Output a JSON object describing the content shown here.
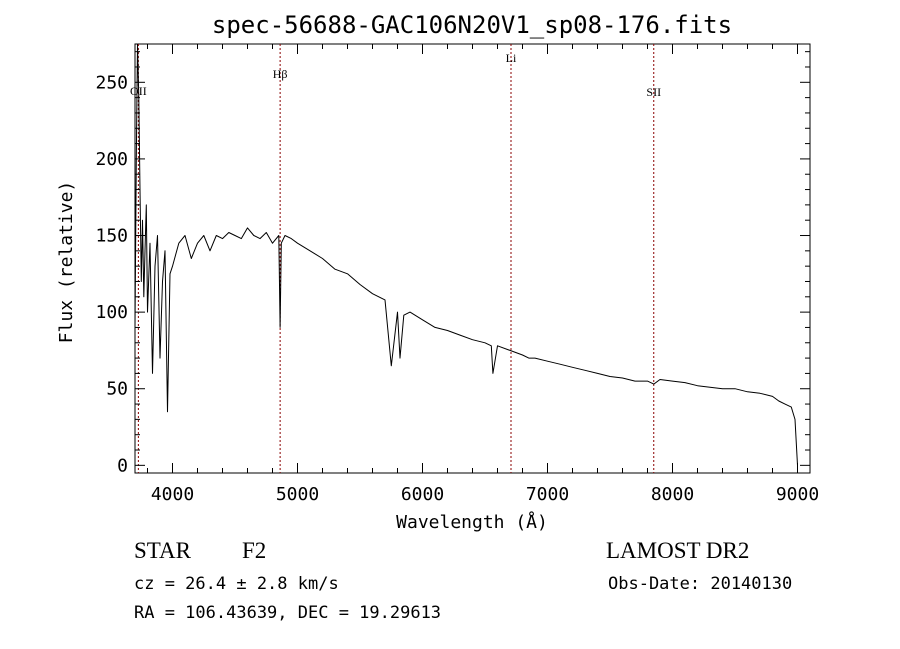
{
  "chart_data": {
    "type": "line",
    "title": "spec-56688-GAC106N20V1_sp08-176.fits",
    "xlabel": "Wavelength (Å)",
    "ylabel": "Flux (relative)",
    "xlim": [
      3700,
      9100
    ],
    "ylim": [
      -5,
      275
    ],
    "x_ticks": [
      4000,
      5000,
      6000,
      7000,
      8000,
      9000
    ],
    "y_ticks": [
      0,
      50,
      100,
      150,
      200,
      250
    ],
    "grid": false,
    "line_color": "#000000",
    "marker_color": "#8b0000",
    "spectral_lines": [
      {
        "label": "OII",
        "wavelength": 3727
      },
      {
        "label": "Hβ",
        "wavelength": 4861
      },
      {
        "label": "Li",
        "wavelength": 6708
      },
      {
        "label": "SII",
        "wavelength": 7850
      }
    ],
    "series": [
      {
        "x": [
          3700,
          3710,
          3720,
          3730,
          3740,
          3750,
          3760,
          3770,
          3780,
          3790,
          3800,
          3820,
          3840,
          3860,
          3880,
          3900,
          3920,
          3940,
          3960,
          3980,
          4000,
          4050,
          4100,
          4150,
          4200,
          4250,
          4300,
          4350,
          4400,
          4450,
          4500,
          4550,
          4600,
          4650,
          4700,
          4750,
          4800,
          4850,
          4861,
          4870,
          4900,
          4950,
          5000,
          5100,
          5200,
          5300,
          5400,
          5500,
          5600,
          5700,
          5750,
          5800,
          5820,
          5850,
          5900,
          6000,
          6100,
          6200,
          6300,
          6400,
          6500,
          6550,
          6563,
          6600,
          6700,
          6800,
          6850,
          6900,
          7000,
          7100,
          7200,
          7300,
          7400,
          7500,
          7600,
          7700,
          7800,
          7850,
          7900,
          8000,
          8100,
          8200,
          8300,
          8400,
          8500,
          8600,
          8700,
          8800,
          8850,
          8900,
          8950,
          8980,
          9000
        ],
        "y": [
          90,
          200,
          280,
          240,
          180,
          120,
          160,
          110,
          140,
          170,
          100,
          145,
          60,
          130,
          150,
          70,
          120,
          140,
          35,
          125,
          130,
          145,
          150,
          135,
          145,
          150,
          140,
          150,
          148,
          152,
          150,
          148,
          155,
          150,
          148,
          152,
          145,
          150,
          90,
          145,
          150,
          148,
          145,
          140,
          135,
          128,
          125,
          118,
          112,
          108,
          65,
          100,
          70,
          98,
          100,
          95,
          90,
          88,
          85,
          82,
          80,
          78,
          60,
          78,
          75,
          72,
          70,
          70,
          68,
          66,
          64,
          62,
          60,
          58,
          57,
          55,
          55,
          53,
          56,
          55,
          54,
          52,
          51,
          50,
          50,
          48,
          47,
          45,
          42,
          40,
          38,
          30,
          0
        ]
      }
    ],
    "footer": {
      "object_class": "STAR",
      "subclass": "F2",
      "redshift": "cz = 26.4 ± 2.8 km/s",
      "coords": "RA = 106.43639, DEC =  19.29613",
      "survey": "LAMOST DR2",
      "obs_date": "Obs-Date: 20140130"
    }
  }
}
